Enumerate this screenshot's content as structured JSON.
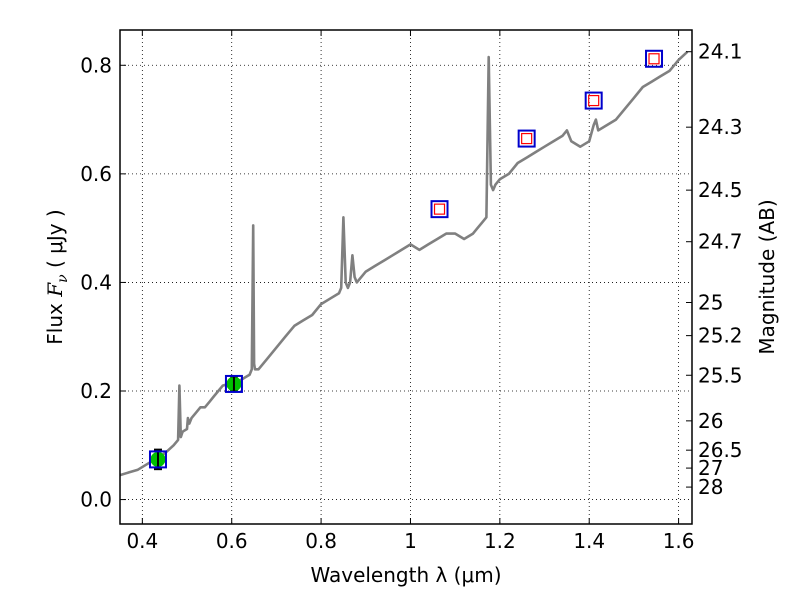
{
  "chart_data": {
    "type": "line",
    "xlabel": "Wavelength  λ (μm)",
    "ylabel": {
      "prefix": "Flux  ",
      "symbol": "F",
      "subscript": "ν",
      "unit": "  ( μJy )"
    },
    "y2label": "Magnitude (AB)",
    "xlim": [
      0.35,
      1.63
    ],
    "ylim": [
      -0.045,
      0.865
    ],
    "grid": true,
    "x_ticks": [
      0.4,
      0.6,
      0.8,
      1.0,
      1.2,
      1.4,
      1.6
    ],
    "x_tick_labels": [
      "0.4",
      "0.6",
      "0.8",
      "1",
      "1.2",
      "1.4",
      "1.6"
    ],
    "y_ticks": [
      0.0,
      0.2,
      0.4,
      0.6,
      0.8
    ],
    "y_tick_labels": [
      "0.0",
      "0.2",
      "0.4",
      "0.6",
      "0.8"
    ],
    "y2_ticks": [
      {
        "label": "24.1",
        "flux": 0.825
      },
      {
        "label": "24.3",
        "flux": 0.686
      },
      {
        "label": "24.5",
        "flux": 0.57
      },
      {
        "label": "24.7",
        "flux": 0.475
      },
      {
        "label": "25",
        "flux": 0.363
      },
      {
        "label": "25.2",
        "flux": 0.302
      },
      {
        "label": "25.5",
        "flux": 0.229
      },
      {
        "label": "26",
        "flux": 0.145
      },
      {
        "label": "26.5",
        "flux": 0.091
      },
      {
        "label": "27",
        "flux": 0.058
      },
      {
        "label": "28",
        "flux": 0.023
      }
    ],
    "series": [
      {
        "type": "line",
        "color": "#808080",
        "x": [
          0.35,
          0.37,
          0.39,
          0.41,
          0.43,
          0.45,
          0.47,
          0.48,
          0.483,
          0.486,
          0.49,
          0.5,
          0.502,
          0.505,
          0.51,
          0.52,
          0.53,
          0.54,
          0.55,
          0.56,
          0.57,
          0.58,
          0.6,
          0.62,
          0.63,
          0.64,
          0.645,
          0.648,
          0.65,
          0.652,
          0.656,
          0.66,
          0.68,
          0.7,
          0.72,
          0.74,
          0.76,
          0.78,
          0.8,
          0.82,
          0.84,
          0.845,
          0.85,
          0.855,
          0.86,
          0.865,
          0.87,
          0.875,
          0.88,
          0.9,
          0.92,
          0.94,
          0.96,
          0.98,
          1.0,
          1.02,
          1.04,
          1.06,
          1.08,
          1.1,
          1.12,
          1.14,
          1.15,
          1.16,
          1.17,
          1.175,
          1.18,
          1.185,
          1.19,
          1.2,
          1.22,
          1.24,
          1.26,
          1.28,
          1.3,
          1.32,
          1.34,
          1.35,
          1.36,
          1.38,
          1.4,
          1.41,
          1.415,
          1.42,
          1.44,
          1.46,
          1.48,
          1.5,
          1.52,
          1.54,
          1.56,
          1.58,
          1.6,
          1.62
        ],
        "y": [
          0.045,
          0.05,
          0.055,
          0.065,
          0.075,
          0.085,
          0.1,
          0.11,
          0.21,
          0.115,
          0.125,
          0.13,
          0.15,
          0.14,
          0.15,
          0.16,
          0.17,
          0.17,
          0.18,
          0.19,
          0.2,
          0.21,
          0.215,
          0.22,
          0.225,
          0.23,
          0.24,
          0.505,
          0.25,
          0.24,
          0.24,
          0.24,
          0.26,
          0.28,
          0.3,
          0.32,
          0.33,
          0.34,
          0.36,
          0.37,
          0.38,
          0.39,
          0.52,
          0.4,
          0.39,
          0.4,
          0.45,
          0.41,
          0.4,
          0.42,
          0.43,
          0.44,
          0.45,
          0.46,
          0.47,
          0.46,
          0.47,
          0.48,
          0.49,
          0.49,
          0.48,
          0.49,
          0.5,
          0.51,
          0.52,
          0.815,
          0.58,
          0.57,
          0.58,
          0.59,
          0.6,
          0.62,
          0.63,
          0.64,
          0.65,
          0.66,
          0.67,
          0.68,
          0.66,
          0.65,
          0.66,
          0.69,
          0.7,
          0.68,
          0.69,
          0.7,
          0.72,
          0.74,
          0.76,
          0.77,
          0.78,
          0.79,
          0.81,
          0.825
        ]
      },
      {
        "type": "errorbar",
        "marker": "circle",
        "face_color": "#00c000",
        "points": [
          {
            "x": 0.435,
            "y": 0.074,
            "err": 0.018
          },
          {
            "x": 0.605,
            "y": 0.213,
            "err": 0.014
          }
        ]
      },
      {
        "type": "scatter",
        "marker": "square",
        "edge_color": "#0000cc",
        "points": [
          {
            "x": 0.435,
            "y": 0.074
          },
          {
            "x": 0.605,
            "y": 0.213
          },
          {
            "x": 1.065,
            "y": 0.535
          },
          {
            "x": 1.26,
            "y": 0.665
          },
          {
            "x": 1.41,
            "y": 0.735
          },
          {
            "x": 1.545,
            "y": 0.812
          }
        ]
      },
      {
        "type": "scatter",
        "marker": "square-small",
        "edge_color": "#ff0000",
        "points": [
          {
            "x": 1.065,
            "y": 0.535
          },
          {
            "x": 1.26,
            "y": 0.665
          },
          {
            "x": 1.41,
            "y": 0.735
          },
          {
            "x": 1.545,
            "y": 0.812
          }
        ]
      }
    ]
  }
}
